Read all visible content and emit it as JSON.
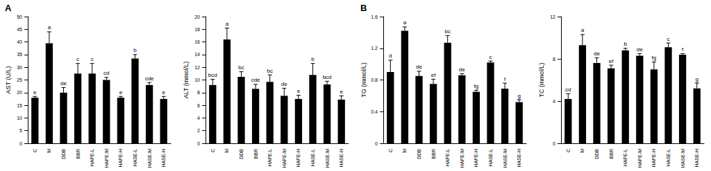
{
  "chart_data": [
    {
      "type": "bar",
      "title": "A",
      "y_label": "AST (U/L)",
      "categories": [
        "C",
        "M",
        "DDB",
        "BBR",
        "HAPE-L",
        "HAPE-M",
        "HAPE-H",
        "HASE-L",
        "HASE-M",
        "HASE-H"
      ],
      "values": [
        18,
        39.5,
        20,
        27.5,
        27.5,
        25,
        18,
        33.5,
        23,
        17.5
      ],
      "errors": [
        0.5,
        4.5,
        2,
        4,
        4,
        1,
        0.5,
        1.5,
        1,
        1
      ],
      "annotations": [
        "e",
        "a",
        "de",
        "c",
        "c",
        "cd",
        "e",
        "b",
        "cde",
        "e"
      ],
      "color": "#000000",
      "ylim": [
        0,
        50
      ],
      "yticks": [
        0,
        5,
        10,
        15,
        20,
        25,
        30,
        35,
        40,
        45,
        50
      ],
      "grid": false
    },
    {
      "type": "bar",
      "y_label": "ALT (mmol/L)",
      "categories": [
        "C",
        "M",
        "DDB",
        "BBR",
        "HAPE-L",
        "HAPE-M",
        "HAPE-H",
        "HASE-L",
        "HASE-M",
        "HASE-H"
      ],
      "values": [
        9.2,
        16.4,
        10.5,
        8.6,
        9.7,
        7.5,
        7.0,
        10.8,
        9.3,
        6.9
      ],
      "errors": [
        0.9,
        1.8,
        0.8,
        0.7,
        1.1,
        1.2,
        0.6,
        1.8,
        0.5,
        0.6
      ],
      "annotations": [
        "bcd",
        "a",
        "bc",
        "cde",
        "bc",
        "de",
        "e",
        "b",
        "bcd",
        "e"
      ],
      "color": "#000000",
      "ylim": [
        0,
        20
      ],
      "yticks": [
        0,
        2,
        4,
        6,
        8,
        10,
        12,
        14,
        16,
        18,
        20
      ],
      "grid": false
    },
    {
      "type": "bar",
      "title": "B",
      "y_label": "TG (mmol/L)",
      "categories": [
        "C",
        "M",
        "DDB",
        "BBR",
        "HAPE-L",
        "HAPE-M",
        "HAPE-H",
        "HASE-L",
        "HASE-M",
        "HASE-H"
      ],
      "values": [
        0.9,
        1.42,
        0.85,
        0.75,
        1.27,
        0.86,
        0.65,
        1.02,
        0.69,
        0.52
      ],
      "errors": [
        0.15,
        0.05,
        0.06,
        0.06,
        0.09,
        0.02,
        0.02,
        0.02,
        0.07,
        0.03
      ],
      "annotations": [
        "d",
        "a",
        "de",
        "ef",
        "bc",
        "de",
        "fg",
        "c",
        "f",
        "g"
      ],
      "color": "#000000",
      "ylim": [
        0,
        1.6
      ],
      "yticks": [
        0,
        0.4,
        0.8,
        1.2,
        1.6
      ],
      "grid": false
    },
    {
      "type": "bar",
      "y_label": "TC (mmol/L)",
      "categories": [
        "C",
        "M",
        "DDB",
        "BBR",
        "HAPE-L",
        "HAPE-M",
        "HAPE-H",
        "HASE-L",
        "HASE-M",
        "HASE-H"
      ],
      "values": [
        4.2,
        9.3,
        7.6,
        7.1,
        8.8,
        8.3,
        7.0,
        9.1,
        8.4,
        5.2
      ],
      "errors": [
        0.5,
        1.0,
        0.5,
        0.3,
        0.2,
        0.2,
        0.7,
        0.4,
        0.1,
        0.5
      ],
      "annotations": [
        "cd",
        "a",
        "de",
        "ef",
        "b",
        "de",
        "fg",
        "c",
        "f",
        "g"
      ],
      "color": "#000000",
      "ylim": [
        0,
        12
      ],
      "yticks": [
        0,
        4,
        8,
        12
      ],
      "grid": false
    }
  ]
}
